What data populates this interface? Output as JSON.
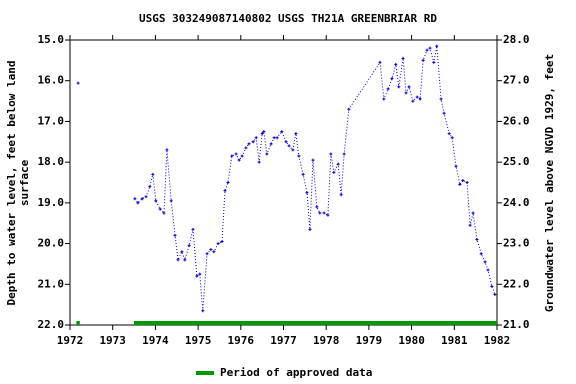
{
  "chart_data": {
    "type": "line",
    "title": "USGS 303249087140802 USGS TH21A GREENBRIAR RD",
    "ylabel": [
      "Depth to water level, feet below land",
      "surface"
    ],
    "y2label": "Groundwater level above NGVD 1929, feet",
    "invert_y": true,
    "xlim": [
      1972,
      1982
    ],
    "xticks": [
      1972,
      1973,
      1974,
      1975,
      1976,
      1977,
      1978,
      1979,
      1980,
      1981,
      1982
    ],
    "ylim": [
      15,
      22
    ],
    "yticks": [
      {
        "value": 15,
        "label": "15.0"
      },
      {
        "value": 16,
        "label": "16.0"
      },
      {
        "value": 17,
        "label": "17.0"
      },
      {
        "value": 18,
        "label": "18.0"
      },
      {
        "value": 19,
        "label": "19.0"
      },
      {
        "value": 20,
        "label": "20.0"
      },
      {
        "value": 21,
        "label": "21.0"
      },
      {
        "value": 22,
        "label": "22.0"
      }
    ],
    "y2lim": [
      21,
      28
    ],
    "y2ticks": [
      {
        "value": 21,
        "label": "21.0"
      },
      {
        "value": 22,
        "label": "22.0"
      },
      {
        "value": 23,
        "label": "23.0"
      },
      {
        "value": 24,
        "label": "24.0"
      },
      {
        "value": 25,
        "label": "25.0"
      },
      {
        "value": 26,
        "label": "26.0"
      },
      {
        "value": 27,
        "label": "27.0"
      },
      {
        "value": 28,
        "label": "28.0"
      }
    ],
    "x": [
      1972.19,
      null,
      1973.52,
      1973.59,
      1973.69,
      1973.78,
      1973.87,
      1973.94,
      1974.01,
      1974.11,
      1974.2,
      1974.27,
      1974.37,
      1974.46,
      1974.53,
      1974.62,
      1974.69,
      1974.79,
      1974.88,
      1974.97,
      1975.04,
      1975.11,
      1975.21,
      1975.3,
      1975.37,
      1975.47,
      1975.56,
      1975.63,
      1975.7,
      1975.79,
      1975.89,
      1975.96,
      1976.03,
      1976.12,
      1976.19,
      1976.29,
      1976.36,
      1976.43,
      1976.5,
      1976.54,
      1976.61,
      1976.71,
      1976.78,
      1976.85,
      1976.96,
      1977.06,
      1977.13,
      1977.22,
      1977.29,
      1977.36,
      1977.46,
      1977.55,
      1977.62,
      1977.69,
      1977.78,
      1977.85,
      1977.95,
      1978.04,
      1978.11,
      1978.18,
      1978.28,
      1978.35,
      1978.42,
      1978.53,
      1979.26,
      1979.35,
      1979.45,
      1979.54,
      1979.63,
      1979.7,
      1979.8,
      1979.87,
      1979.94,
      1980.03,
      1980.13,
      1980.2,
      1980.27,
      1980.36,
      1980.43,
      1980.52,
      1980.59,
      1980.69,
      1980.76,
      1980.88,
      1980.95,
      1981.04,
      1981.13,
      1981.2,
      1981.3,
      1981.37,
      1981.44,
      1981.53,
      1981.63,
      1981.72,
      1981.79,
      1981.88,
      1981.95
    ],
    "series": [
      {
        "color": "#0000cc",
        "values": [
          16.06,
          null,
          18.9,
          19.0,
          18.9,
          18.85,
          18.6,
          18.3,
          18.95,
          19.15,
          19.25,
          17.7,
          18.95,
          19.8,
          20.4,
          20.2,
          20.4,
          20.05,
          19.65,
          20.8,
          20.75,
          21.65,
          20.25,
          20.15,
          20.2,
          20.0,
          19.95,
          18.7,
          18.5,
          17.85,
          17.8,
          17.95,
          17.85,
          17.65,
          17.55,
          17.5,
          17.4,
          18.0,
          17.3,
          17.25,
          17.8,
          17.55,
          17.4,
          17.4,
          17.25,
          17.5,
          17.6,
          17.7,
          17.3,
          17.85,
          18.3,
          18.75,
          19.65,
          17.95,
          19.1,
          19.25,
          19.25,
          19.3,
          17.8,
          18.25,
          18.05,
          18.8,
          17.8,
          16.7,
          15.55,
          16.45,
          16.2,
          15.95,
          15.6,
          16.15,
          15.45,
          16.3,
          16.15,
          16.5,
          16.4,
          16.45,
          15.5,
          15.25,
          15.2,
          15.55,
          15.15,
          16.45,
          16.8,
          17.3,
          17.4,
          18.1,
          18.55,
          18.45,
          18.5,
          19.55,
          19.25,
          19.9,
          20.25,
          20.45,
          20.65,
          21.05,
          21.25
        ]
      }
    ],
    "approved_periods": {
      "name": "Period of approved data",
      "color": "#009900",
      "ranges": [
        [
          1972.15,
          1972.23
        ],
        [
          1973.5,
          1982
        ]
      ]
    }
  }
}
